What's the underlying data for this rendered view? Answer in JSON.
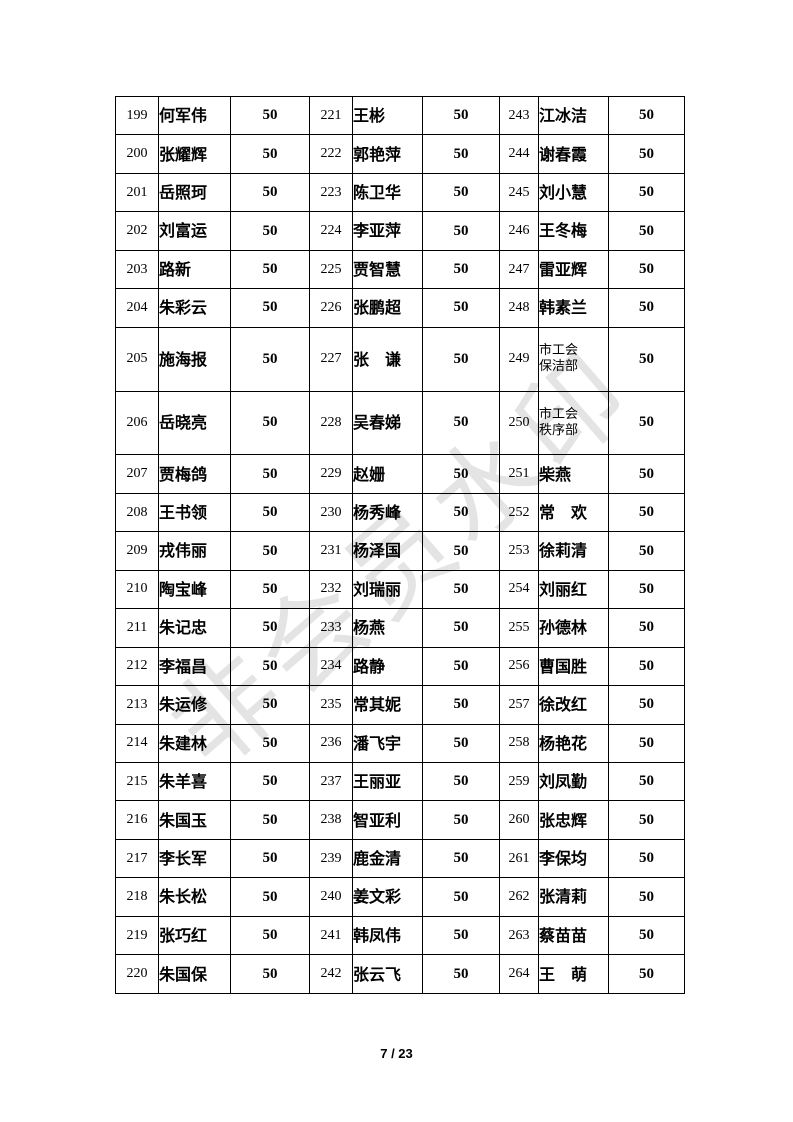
{
  "document": {
    "watermark": "非会员水印",
    "footer": {
      "page_indicator": "7 / 23"
    }
  },
  "table": {
    "score_value": "50",
    "rows": [
      [
        [
          "199",
          "何军伟",
          "50"
        ],
        [
          "221",
          "王彬",
          "50"
        ],
        [
          "243",
          "江冰洁",
          "50"
        ]
      ],
      [
        [
          "200",
          "张耀辉",
          "50"
        ],
        [
          "222",
          "郭艳萍",
          "50"
        ],
        [
          "244",
          "谢春霞",
          "50"
        ]
      ],
      [
        [
          "201",
          "岳照珂",
          "50"
        ],
        [
          "223",
          "陈卫华",
          "50"
        ],
        [
          "245",
          "刘小慧",
          "50"
        ]
      ],
      [
        [
          "202",
          "刘富运",
          "50"
        ],
        [
          "224",
          "李亚萍",
          "50"
        ],
        [
          "246",
          "王冬梅",
          "50"
        ]
      ],
      [
        [
          "203",
          "路新",
          "50"
        ],
        [
          "225",
          "贾智慧",
          "50"
        ],
        [
          "247",
          "雷亚辉",
          "50"
        ]
      ],
      [
        [
          "204",
          "朱彩云",
          "50"
        ],
        [
          "226",
          "张鹏超",
          "50"
        ],
        [
          "248",
          "韩素兰",
          "50"
        ]
      ],
      [
        [
          "205",
          "施海报",
          "50"
        ],
        [
          "227",
          "张　谦",
          "50"
        ],
        [
          "249",
          "市工会\n保洁部",
          "50"
        ]
      ],
      [
        [
          "206",
          "岳晓亮",
          "50"
        ],
        [
          "228",
          "吴春娣",
          "50"
        ],
        [
          "250",
          "市工会\n秩序部",
          "50"
        ]
      ],
      [
        [
          "207",
          "贾梅鸽",
          "50"
        ],
        [
          "229",
          "赵姗",
          "50"
        ],
        [
          "251",
          "柴燕",
          "50"
        ]
      ],
      [
        [
          "208",
          "王书领",
          "50"
        ],
        [
          "230",
          "杨秀峰",
          "50"
        ],
        [
          "252",
          "常　欢",
          "50"
        ]
      ],
      [
        [
          "209",
          "戎伟丽",
          "50"
        ],
        [
          "231",
          "杨泽国",
          "50"
        ],
        [
          "253",
          "徐莉清",
          "50"
        ]
      ],
      [
        [
          "210",
          "陶宝峰",
          "50"
        ],
        [
          "232",
          "刘瑞丽",
          "50"
        ],
        [
          "254",
          "刘丽红",
          "50"
        ]
      ],
      [
        [
          "211",
          "朱记忠",
          "50"
        ],
        [
          "233",
          "杨燕",
          "50"
        ],
        [
          "255",
          "孙德林",
          "50"
        ]
      ],
      [
        [
          "212",
          "李福昌",
          "50"
        ],
        [
          "234",
          "路静",
          "50"
        ],
        [
          "256",
          "曹国胜",
          "50"
        ]
      ],
      [
        [
          "213",
          "朱运修",
          "50"
        ],
        [
          "235",
          "常其妮",
          "50"
        ],
        [
          "257",
          "徐改红",
          "50"
        ]
      ],
      [
        [
          "214",
          "朱建林",
          "50"
        ],
        [
          "236",
          "潘飞宇",
          "50"
        ],
        [
          "258",
          "杨艳花",
          "50"
        ]
      ],
      [
        [
          "215",
          "朱羊喜",
          "50"
        ],
        [
          "237",
          "王丽亚",
          "50"
        ],
        [
          "259",
          "刘凤勤",
          "50"
        ]
      ],
      [
        [
          "216",
          "朱国玉",
          "50"
        ],
        [
          "238",
          "智亚利",
          "50"
        ],
        [
          "260",
          "张忠辉",
          "50"
        ]
      ],
      [
        [
          "217",
          "李长军",
          "50"
        ],
        [
          "239",
          "鹿金清",
          "50"
        ],
        [
          "261",
          "李保均",
          "50"
        ]
      ],
      [
        [
          "218",
          "朱长松",
          "50"
        ],
        [
          "240",
          "姜文彩",
          "50"
        ],
        [
          "262",
          "张清莉",
          "50"
        ]
      ],
      [
        [
          "219",
          "张巧红",
          "50"
        ],
        [
          "241",
          "韩凤伟",
          "50"
        ],
        [
          "263",
          "蔡苗苗",
          "50"
        ]
      ],
      [
        [
          "220",
          "朱国保",
          "50"
        ],
        [
          "242",
          "张云飞",
          "50"
        ],
        [
          "264",
          "王　萌",
          "50"
        ]
      ]
    ]
  }
}
